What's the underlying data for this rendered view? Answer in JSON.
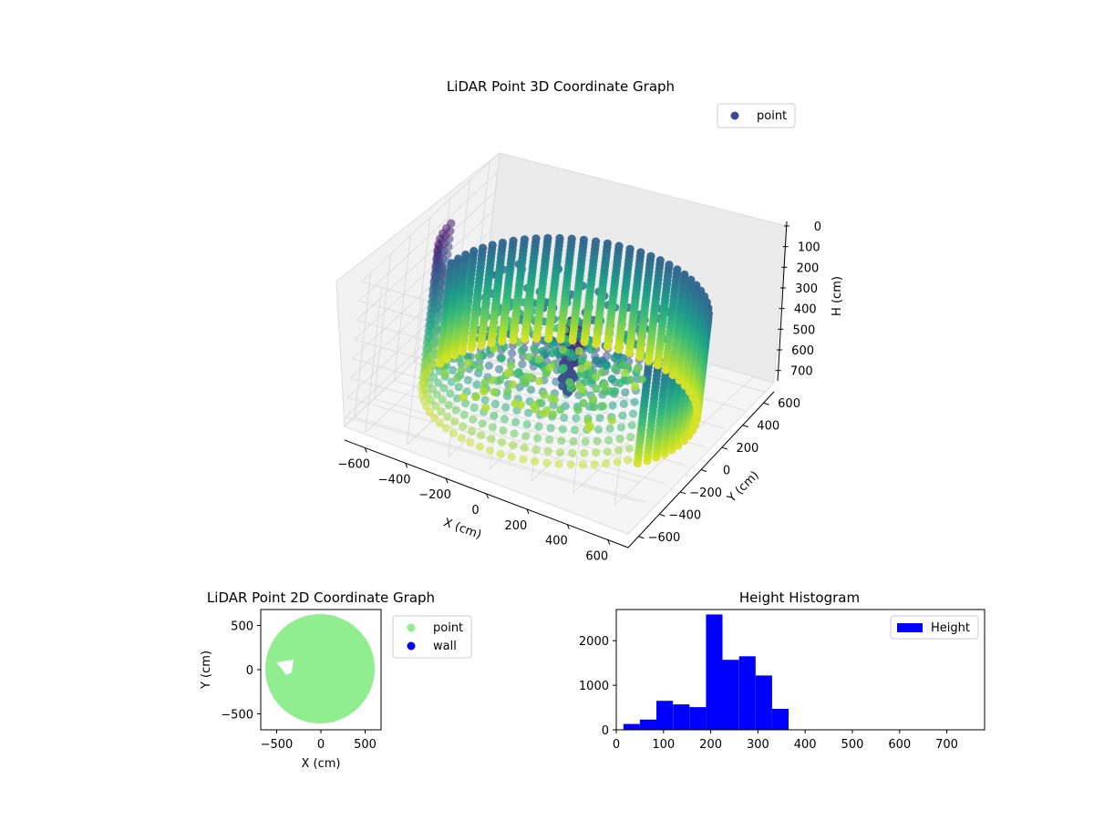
{
  "chart_data": [
    {
      "type": "scatter",
      "projection": "3d",
      "title": "LiDAR Point 3D Coordinate Graph",
      "xlabel": "X (cm)",
      "ylabel": "Y (cm)",
      "zlabel": "H (cm)",
      "xlim": [
        -700,
        700
      ],
      "ylim": [
        -700,
        700
      ],
      "zlim": [
        0,
        750
      ],
      "zaxis_inverted": true,
      "xticks": [
        "−600",
        "−400",
        "−200",
        "0",
        "200",
        "400",
        "600"
      ],
      "yticks": [
        "−600",
        "−400",
        "−200",
        "0",
        "200",
        "400",
        "600"
      ],
      "zticks": [
        "0",
        "100",
        "200",
        "300",
        "400",
        "500",
        "600",
        "700"
      ],
      "grid": true,
      "legend": {
        "position": "upper-right",
        "entries": [
          {
            "name": "point",
            "color": "#3b4992"
          }
        ]
      },
      "colormap": "viridis",
      "series": [
        {
          "name": "point",
          "shape": "cylindrical wall of radius ~600 cm spanning H 0–750 cm with interior objects",
          "radius": 600,
          "h_range": [
            0,
            750
          ]
        }
      ]
    },
    {
      "type": "scatter",
      "title": "LiDAR Point 2D Coordinate Graph",
      "xlabel": "X (cm)",
      "ylabel": "Y (cm)",
      "xlim": [
        -680,
        680
      ],
      "ylim": [
        -680,
        680
      ],
      "xticks": [
        "−500",
        "0",
        "500"
      ],
      "yticks": [
        "−500",
        "0",
        "500"
      ],
      "legend": {
        "position": "outside-right",
        "entries": [
          {
            "name": "point",
            "color": "#90ee90"
          },
          {
            "name": "wall",
            "color": "#0000ff"
          }
        ]
      },
      "series": [
        {
          "name": "point",
          "color": "#90ee90",
          "shape": "filled disk",
          "center": [
            0,
            0
          ],
          "radius": 600
        },
        {
          "name": "wall",
          "color": "#0000ff",
          "values": []
        }
      ]
    },
    {
      "type": "bar",
      "title": "Height Histogram",
      "xlabel": "",
      "ylabel": "",
      "xlim": [
        0,
        780
      ],
      "ylim": [
        0,
        2700
      ],
      "xticks": [
        "0",
        "100",
        "200",
        "300",
        "400",
        "500",
        "600",
        "700"
      ],
      "yticks": [
        "0",
        "1000",
        "2000"
      ],
      "legend": {
        "position": "upper-right",
        "entries": [
          {
            "name": "Height",
            "color": "#0000ff"
          }
        ]
      },
      "bin_edges": [
        15,
        50,
        85,
        120,
        155,
        190,
        225,
        260,
        295,
        330,
        365,
        400,
        435,
        470,
        505,
        540,
        575,
        610,
        645,
        680,
        715,
        750
      ],
      "series": [
        {
          "name": "Height",
          "color": "#0000ff",
          "values": [
            130,
            230,
            650,
            570,
            510,
            2590,
            1570,
            1650,
            1220,
            470,
            0,
            0,
            0,
            0,
            0,
            0,
            0,
            0,
            0,
            0,
            0
          ]
        }
      ]
    }
  ]
}
